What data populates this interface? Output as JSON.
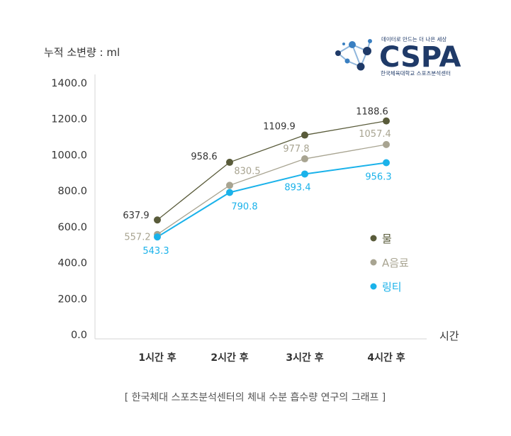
{
  "chart_data": {
    "type": "line",
    "ylabel": "누적 소변량 : ml",
    "xlabel": "시간",
    "categories": [
      "1시간 후",
      "2시간 후",
      "3시간 후",
      "4시간 후"
    ],
    "yticks": [
      "0.0",
      "200.0",
      "400.0",
      "600.0",
      "800.0",
      "1000.0",
      "1200.0",
      "1400.0"
    ],
    "ylim": [
      0,
      1400
    ],
    "series": [
      {
        "name": "물",
        "color": "#595b3a",
        "values": [
          637.9,
          958.6,
          1109.9,
          1188.6
        ],
        "labels": [
          "637.9",
          "958.6",
          "1109.9",
          "1188.6"
        ]
      },
      {
        "name": "A음료",
        "color": "#a8a491",
        "values": [
          557.2,
          830.5,
          977.8,
          1057.4
        ],
        "labels": [
          "557.2",
          "830.5",
          "977.8",
          "1057.4"
        ]
      },
      {
        "name": "링티",
        "color": "#1ab2ea",
        "values": [
          543.3,
          790.8,
          893.4,
          956.3
        ],
        "labels": [
          "543.3",
          "790.8",
          "893.4",
          "956.3"
        ]
      }
    ],
    "caption": "[ 한국체대 스포츠분석센터의 체내 수분 흡수량 연구의 그래프 ]"
  },
  "logo": {
    "tagline": "데이터로 만드는 더 나은 세상",
    "name": "CSPA",
    "org": "한국체육대학교 스포츠분석센터",
    "colors": {
      "navy": "#1f3a68",
      "blue": "#3a7fc1"
    }
  }
}
